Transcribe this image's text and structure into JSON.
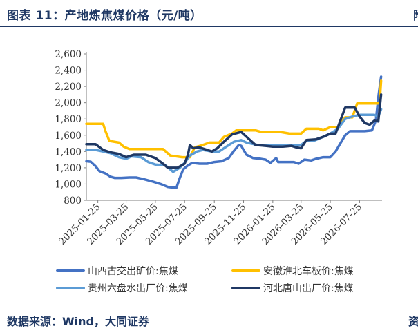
{
  "header": {
    "title": "图表 11：产地炼焦煤价格（元/吨）",
    "title_cut": "附"
  },
  "footer": {
    "source": "数据来源：Wind，大同证券",
    "source_cut": "资"
  },
  "chart_data": {
    "type": "line",
    "title": "",
    "xlabel": "",
    "ylabel": "",
    "ylim": [
      800,
      2600
    ],
    "yticks": [
      800,
      1000,
      1200,
      1400,
      1600,
      1800,
      2000,
      2200,
      2400,
      2600
    ],
    "ytick_labels": [
      "800",
      "1,000",
      "1,200",
      "1,400",
      "1,600",
      "1,800",
      "2,000",
      "2,200",
      "2,400",
      "2,600"
    ],
    "xlim": [
      "2025-01-01",
      "2026-09-10"
    ],
    "xtick_labels": [
      "2025-01-25",
      "2025-03-25",
      "2025-05-25",
      "2025-07-25",
      "2025-09-25",
      "2025-11-25",
      "2026-01-25",
      "2026-03-25",
      "2026-05-25",
      "2026-07-25"
    ],
    "grid": false,
    "legend_position": "bottom",
    "series": [
      {
        "name": "山西古交出矿价:焦煤",
        "color": "#4472c4",
        "points": [
          [
            "2025-01-01",
            1280
          ],
          [
            "2025-01-10",
            1275
          ],
          [
            "2025-01-20",
            1220
          ],
          [
            "2025-01-28",
            1160
          ],
          [
            "2025-02-10",
            1130
          ],
          [
            "2025-02-20",
            1090
          ],
          [
            "2025-03-01",
            1075
          ],
          [
            "2025-03-15",
            1075
          ],
          [
            "2025-04-01",
            1080
          ],
          [
            "2025-04-15",
            1080
          ],
          [
            "2025-05-01",
            1060
          ],
          [
            "2025-05-20",
            1030
          ],
          [
            "2025-06-05",
            1000
          ],
          [
            "2025-06-20",
            965
          ],
          [
            "2025-07-01",
            955
          ],
          [
            "2025-07-08",
            955
          ],
          [
            "2025-07-14",
            1060
          ],
          [
            "2025-07-22",
            1180
          ],
          [
            "2025-08-01",
            1230
          ],
          [
            "2025-08-10",
            1260
          ],
          [
            "2025-08-25",
            1250
          ],
          [
            "2025-09-10",
            1250
          ],
          [
            "2025-09-25",
            1270
          ],
          [
            "2025-10-10",
            1280
          ],
          [
            "2025-10-25",
            1320
          ],
          [
            "2025-11-05",
            1410
          ],
          [
            "2025-11-15",
            1480
          ],
          [
            "2025-11-20",
            1470
          ],
          [
            "2025-12-01",
            1360
          ],
          [
            "2025-12-15",
            1320
          ],
          [
            "2025-12-30",
            1310
          ],
          [
            "2026-01-10",
            1300
          ],
          [
            "2026-01-20",
            1260
          ],
          [
            "2026-02-01",
            1320
          ],
          [
            "2026-02-05",
            1270
          ],
          [
            "2026-02-20",
            1270
          ],
          [
            "2026-03-10",
            1270
          ],
          [
            "2026-03-20",
            1250
          ],
          [
            "2026-04-01",
            1300
          ],
          [
            "2026-04-15",
            1290
          ],
          [
            "2026-04-25",
            1310
          ],
          [
            "2026-05-10",
            1330
          ],
          [
            "2026-05-25",
            1330
          ],
          [
            "2026-06-05",
            1400
          ],
          [
            "2026-06-15",
            1500
          ],
          [
            "2026-06-25",
            1600
          ],
          [
            "2026-07-05",
            1650
          ],
          [
            "2026-07-20",
            1650
          ],
          [
            "2026-08-05",
            1650
          ],
          [
            "2026-08-20",
            1660
          ],
          [
            "2026-08-28",
            1780
          ],
          [
            "2026-09-03",
            2100
          ],
          [
            "2026-09-08",
            2320
          ]
        ]
      },
      {
        "name": "安徽淮北车板价:焦煤",
        "color": "#ffc000",
        "points": [
          [
            "2025-01-01",
            1740
          ],
          [
            "2025-02-05",
            1740
          ],
          [
            "2025-02-10",
            1650
          ],
          [
            "2025-02-18",
            1530
          ],
          [
            "2025-03-10",
            1510
          ],
          [
            "2025-03-20",
            1460
          ],
          [
            "2025-04-01",
            1430
          ],
          [
            "2025-04-20",
            1430
          ],
          [
            "2025-05-20",
            1430
          ],
          [
            "2025-06-10",
            1430
          ],
          [
            "2025-06-25",
            1350
          ],
          [
            "2025-07-20",
            1330
          ],
          [
            "2025-08-05",
            1330
          ],
          [
            "2025-08-15",
            1450
          ],
          [
            "2025-09-01",
            1480
          ],
          [
            "2025-09-15",
            1510
          ],
          [
            "2025-10-05",
            1510
          ],
          [
            "2025-10-15",
            1580
          ],
          [
            "2025-11-01",
            1620
          ],
          [
            "2025-11-10",
            1660
          ],
          [
            "2025-12-01",
            1660
          ],
          [
            "2025-12-20",
            1660
          ],
          [
            "2026-01-01",
            1640
          ],
          [
            "2026-02-10",
            1640
          ],
          [
            "2026-03-01",
            1620
          ],
          [
            "2026-03-25",
            1620
          ],
          [
            "2026-04-05",
            1680
          ],
          [
            "2026-05-01",
            1680
          ],
          [
            "2026-05-10",
            1660
          ],
          [
            "2026-05-25",
            1700
          ],
          [
            "2026-06-10",
            1700
          ],
          [
            "2026-06-25",
            1820
          ],
          [
            "2026-07-10",
            1820
          ],
          [
            "2026-07-20",
            1990
          ],
          [
            "2026-08-10",
            1990
          ],
          [
            "2026-09-01",
            1990
          ],
          [
            "2026-09-05",
            2000
          ],
          [
            "2026-09-08",
            2270
          ]
        ]
      },
      {
        "name": "贵州六盘水出厂价:焦煤",
        "color": "#5b9bd5",
        "points": [
          [
            "2025-01-01",
            1420
          ],
          [
            "2025-01-20",
            1420
          ],
          [
            "2025-02-05",
            1400
          ],
          [
            "2025-02-20",
            1380
          ],
          [
            "2025-03-10",
            1330
          ],
          [
            "2025-03-25",
            1310
          ],
          [
            "2025-04-05",
            1340
          ],
          [
            "2025-04-25",
            1330
          ],
          [
            "2025-05-10",
            1270
          ],
          [
            "2025-05-25",
            1240
          ],
          [
            "2025-06-15",
            1230
          ],
          [
            "2025-07-01",
            1150
          ],
          [
            "2025-07-15",
            1200
          ],
          [
            "2025-07-25",
            1260
          ],
          [
            "2025-08-05",
            1350
          ],
          [
            "2025-08-20",
            1400
          ],
          [
            "2025-09-01",
            1420
          ],
          [
            "2025-09-20",
            1400
          ],
          [
            "2025-10-05",
            1400
          ],
          [
            "2025-10-20",
            1460
          ],
          [
            "2025-11-05",
            1520
          ],
          [
            "2025-11-20",
            1540
          ],
          [
            "2025-12-01",
            1510
          ],
          [
            "2025-12-25",
            1480
          ],
          [
            "2026-01-10",
            1480
          ],
          [
            "2026-02-10",
            1480
          ],
          [
            "2026-03-01",
            1480
          ],
          [
            "2026-03-25",
            1480
          ],
          [
            "2026-04-05",
            1530
          ],
          [
            "2026-04-20",
            1530
          ],
          [
            "2026-05-10",
            1580
          ],
          [
            "2026-05-25",
            1620
          ],
          [
            "2026-06-10",
            1680
          ],
          [
            "2026-06-25",
            1800
          ],
          [
            "2026-07-10",
            1830
          ],
          [
            "2026-07-25",
            1850
          ],
          [
            "2026-08-10",
            1850
          ],
          [
            "2026-08-25",
            1850
          ],
          [
            "2026-09-02",
            1830
          ],
          [
            "2026-09-08",
            1920
          ]
        ]
      },
      {
        "name": "河北唐山出厂价:焦煤",
        "color": "#1f3864",
        "points": [
          [
            "2025-01-01",
            1490
          ],
          [
            "2025-01-20",
            1490
          ],
          [
            "2025-02-05",
            1420
          ],
          [
            "2025-02-20",
            1390
          ],
          [
            "2025-03-10",
            1370
          ],
          [
            "2025-03-25",
            1330
          ],
          [
            "2025-04-10",
            1360
          ],
          [
            "2025-05-05",
            1360
          ],
          [
            "2025-05-25",
            1320
          ],
          [
            "2025-06-10",
            1250
          ],
          [
            "2025-06-20",
            1200
          ],
          [
            "2025-07-10",
            1200
          ],
          [
            "2025-07-25",
            1250
          ],
          [
            "2025-08-01",
            1360
          ],
          [
            "2025-08-05",
            1480
          ],
          [
            "2025-08-12",
            1440
          ],
          [
            "2025-08-25",
            1450
          ],
          [
            "2025-09-10",
            1420
          ],
          [
            "2025-09-20",
            1400
          ],
          [
            "2025-10-01",
            1440
          ],
          [
            "2025-10-15",
            1520
          ],
          [
            "2025-11-01",
            1610
          ],
          [
            "2025-11-20",
            1640
          ],
          [
            "2025-12-05",
            1560
          ],
          [
            "2025-12-20",
            1480
          ],
          [
            "2026-01-10",
            1470
          ],
          [
            "2026-01-25",
            1460
          ],
          [
            "2026-02-15",
            1460
          ],
          [
            "2026-03-05",
            1470
          ],
          [
            "2026-03-15",
            1450
          ],
          [
            "2026-03-25",
            1440
          ],
          [
            "2026-04-05",
            1540
          ],
          [
            "2026-04-25",
            1550
          ],
          [
            "2026-05-10",
            1580
          ],
          [
            "2026-05-25",
            1620
          ],
          [
            "2026-06-05",
            1620
          ],
          [
            "2026-06-15",
            1780
          ],
          [
            "2026-06-25",
            1940
          ],
          [
            "2026-07-15",
            1940
          ],
          [
            "2026-07-25",
            1830
          ],
          [
            "2026-08-05",
            1750
          ],
          [
            "2026-08-15",
            1730
          ],
          [
            "2026-08-25",
            1780
          ],
          [
            "2026-09-02",
            1770
          ],
          [
            "2026-09-08",
            2100
          ]
        ]
      }
    ]
  }
}
